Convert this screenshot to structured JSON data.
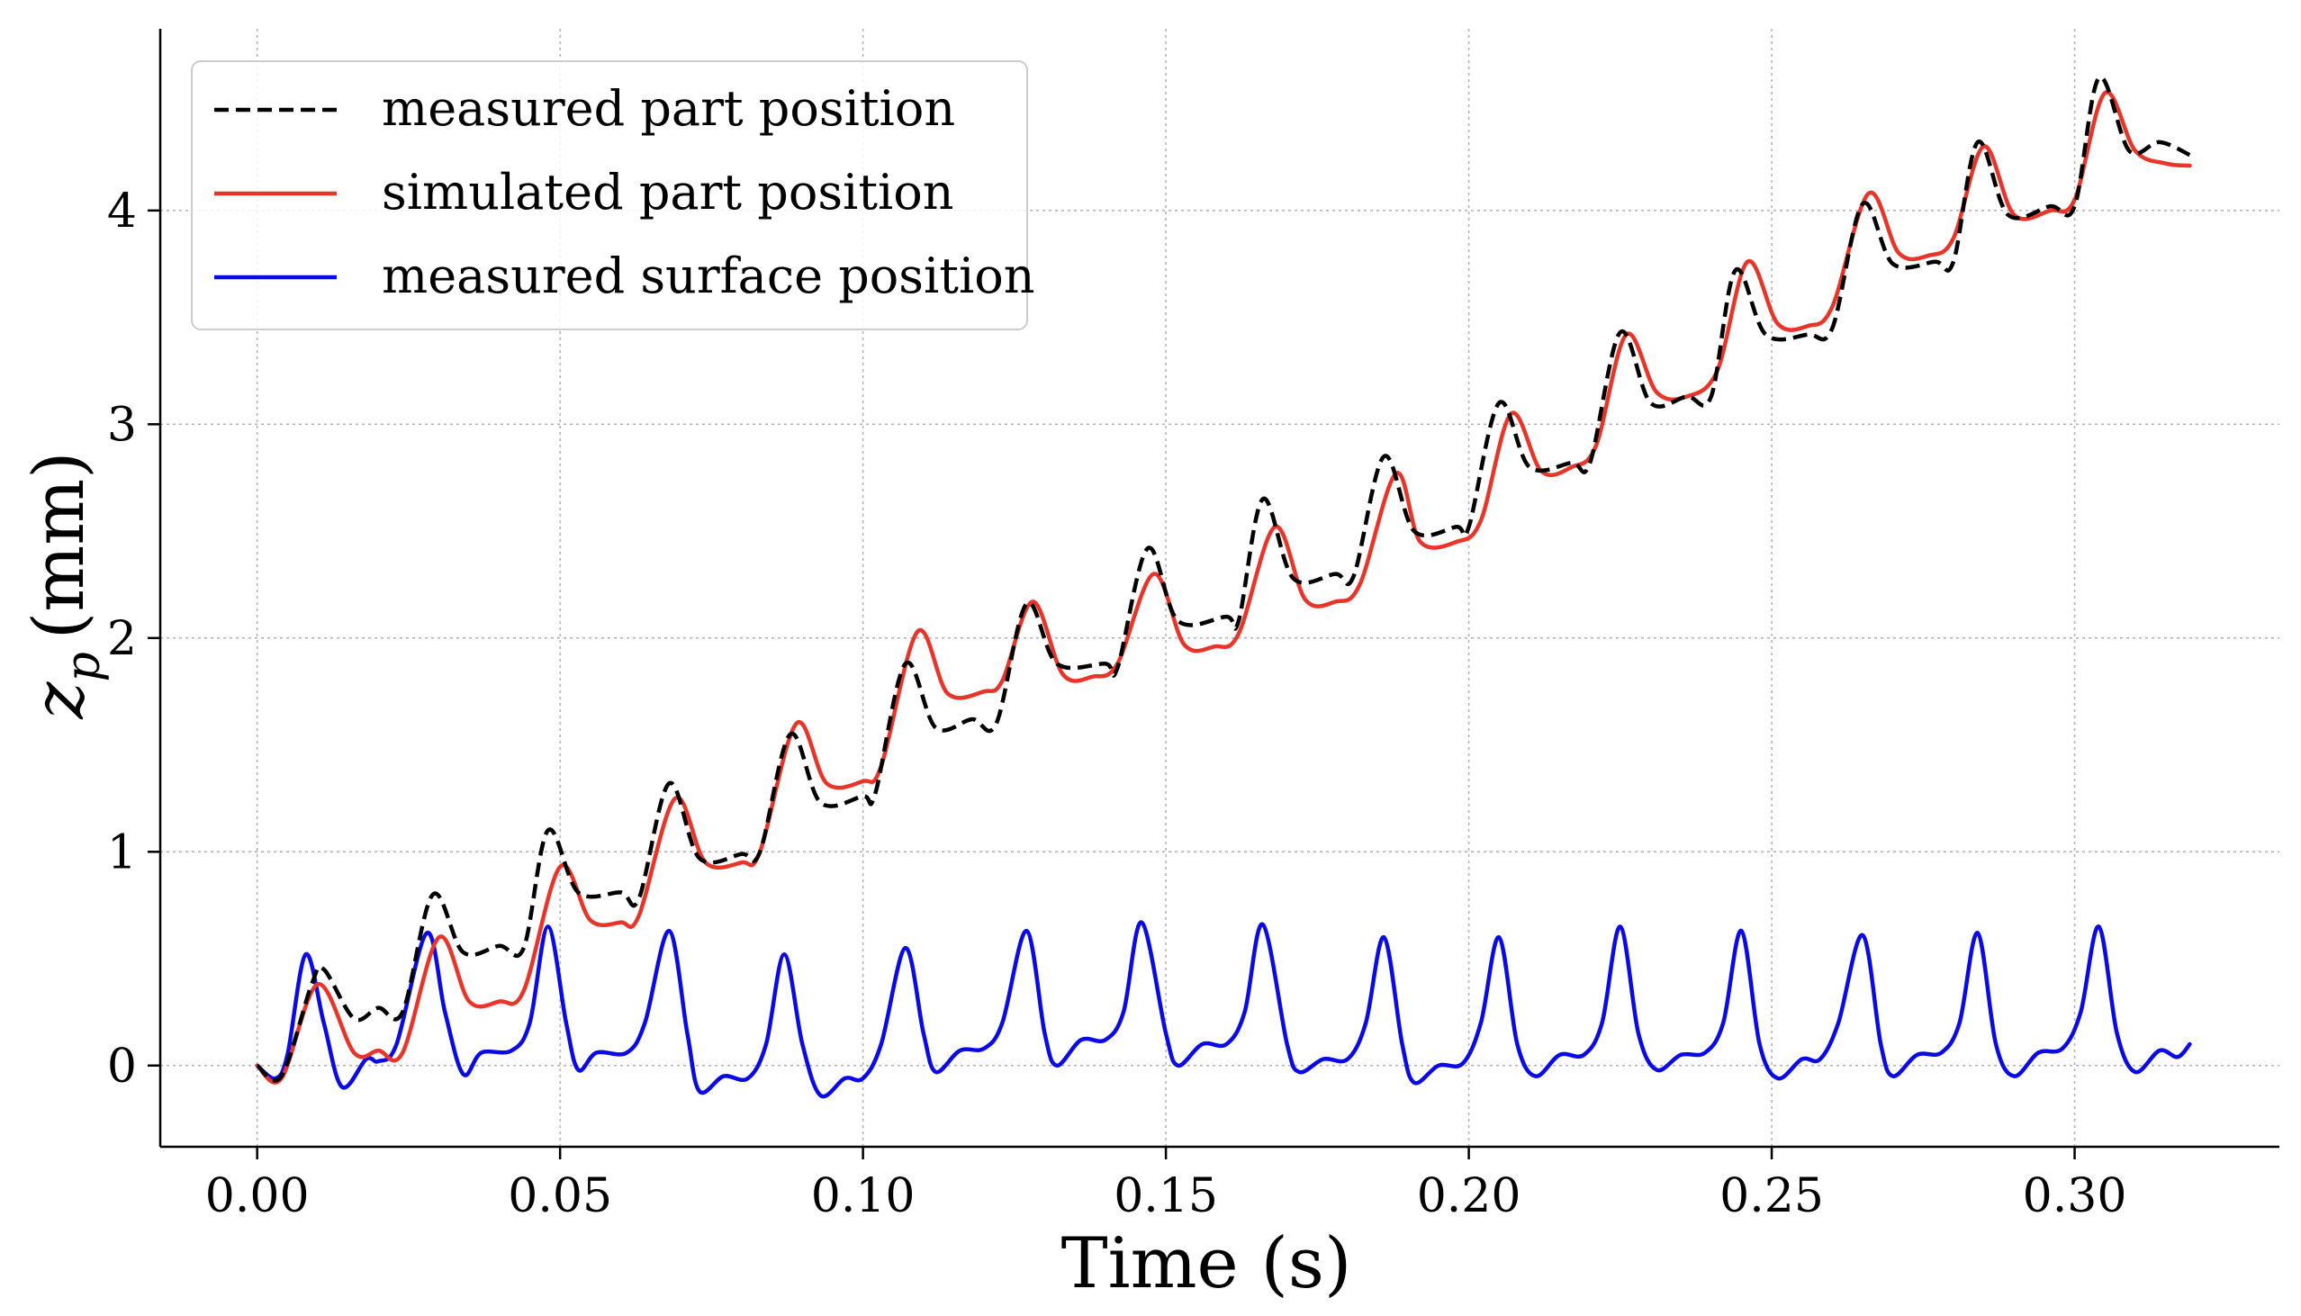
{
  "chart_data": {
    "type": "line",
    "xlabel": "Time (s)",
    "ylabel": {
      "symbol": "z",
      "subscript": "p",
      "unit": "(mm)"
    },
    "xlim": [
      -0.016,
      0.3338
    ],
    "ylim": [
      -0.38,
      4.85
    ],
    "xticks": [
      0.0,
      0.05,
      0.1,
      0.15,
      0.2,
      0.25,
      0.3
    ],
    "xtick_labels": [
      "0.00",
      "0.05",
      "0.10",
      "0.15",
      "0.20",
      "0.25",
      "0.30"
    ],
    "yticks": [
      0,
      1,
      2,
      3,
      4
    ],
    "ytick_labels": [
      "0",
      "1",
      "2",
      "3",
      "4"
    ],
    "grid": true,
    "legend_position": "top-left",
    "series": [
      {
        "name": "measured part position",
        "color": "#000000",
        "style": "dashed",
        "points": [
          [
            0.0,
            0.0
          ],
          [
            0.004,
            -0.05
          ],
          [
            0.009,
            0.38
          ],
          [
            0.011,
            0.45
          ],
          [
            0.016,
            0.22
          ],
          [
            0.02,
            0.27
          ],
          [
            0.024,
            0.25
          ],
          [
            0.029,
            0.8
          ],
          [
            0.034,
            0.53
          ],
          [
            0.04,
            0.56
          ],
          [
            0.044,
            0.55
          ],
          [
            0.048,
            1.1
          ],
          [
            0.053,
            0.81
          ],
          [
            0.06,
            0.81
          ],
          [
            0.063,
            0.78
          ],
          [
            0.068,
            1.32
          ],
          [
            0.073,
            0.97
          ],
          [
            0.08,
            0.99
          ],
          [
            0.083,
            1.0
          ],
          [
            0.088,
            1.55
          ],
          [
            0.093,
            1.23
          ],
          [
            0.1,
            1.26
          ],
          [
            0.102,
            1.27
          ],
          [
            0.107,
            1.88
          ],
          [
            0.112,
            1.58
          ],
          [
            0.118,
            1.62
          ],
          [
            0.122,
            1.6
          ],
          [
            0.127,
            2.16
          ],
          [
            0.132,
            1.88
          ],
          [
            0.14,
            1.88
          ],
          [
            0.142,
            1.86
          ],
          [
            0.147,
            2.42
          ],
          [
            0.152,
            2.08
          ],
          [
            0.16,
            2.1
          ],
          [
            0.162,
            2.08
          ],
          [
            0.166,
            2.65
          ],
          [
            0.171,
            2.28
          ],
          [
            0.178,
            2.3
          ],
          [
            0.181,
            2.29
          ],
          [
            0.186,
            2.85
          ],
          [
            0.191,
            2.5
          ],
          [
            0.198,
            2.52
          ],
          [
            0.2,
            2.52
          ],
          [
            0.205,
            3.1
          ],
          [
            0.21,
            2.8
          ],
          [
            0.217,
            2.82
          ],
          [
            0.22,
            2.82
          ],
          [
            0.225,
            3.43
          ],
          [
            0.23,
            3.1
          ],
          [
            0.236,
            3.13
          ],
          [
            0.24,
            3.13
          ],
          [
            0.244,
            3.72
          ],
          [
            0.249,
            3.42
          ],
          [
            0.256,
            3.42
          ],
          [
            0.26,
            3.45
          ],
          [
            0.265,
            4.03
          ],
          [
            0.27,
            3.75
          ],
          [
            0.277,
            3.76
          ],
          [
            0.28,
            3.76
          ],
          [
            0.284,
            4.32
          ],
          [
            0.289,
            3.98
          ],
          [
            0.296,
            4.02
          ],
          [
            0.3,
            4.02
          ],
          [
            0.304,
            4.62
          ],
          [
            0.309,
            4.28
          ],
          [
            0.314,
            4.32
          ],
          [
            0.319,
            4.26
          ]
        ]
      },
      {
        "name": "simulated part position",
        "color": "#e8352a",
        "style": "solid",
        "points": [
          [
            0.0,
            0.0
          ],
          [
            0.004,
            -0.06
          ],
          [
            0.01,
            0.38
          ],
          [
            0.016,
            0.06
          ],
          [
            0.02,
            0.07
          ],
          [
            0.024,
            0.06
          ],
          [
            0.03,
            0.6
          ],
          [
            0.035,
            0.3
          ],
          [
            0.04,
            0.3
          ],
          [
            0.044,
            0.35
          ],
          [
            0.05,
            0.93
          ],
          [
            0.055,
            0.68
          ],
          [
            0.06,
            0.67
          ],
          [
            0.063,
            0.7
          ],
          [
            0.069,
            1.25
          ],
          [
            0.074,
            0.95
          ],
          [
            0.08,
            0.95
          ],
          [
            0.083,
            1.0
          ],
          [
            0.089,
            1.6
          ],
          [
            0.094,
            1.32
          ],
          [
            0.1,
            1.33
          ],
          [
            0.103,
            1.4
          ],
          [
            0.109,
            2.03
          ],
          [
            0.114,
            1.74
          ],
          [
            0.12,
            1.75
          ],
          [
            0.123,
            1.8
          ],
          [
            0.128,
            2.17
          ],
          [
            0.133,
            1.83
          ],
          [
            0.138,
            1.82
          ],
          [
            0.142,
            1.88
          ],
          [
            0.148,
            2.3
          ],
          [
            0.153,
            1.97
          ],
          [
            0.158,
            1.96
          ],
          [
            0.162,
            2.02
          ],
          [
            0.168,
            2.52
          ],
          [
            0.173,
            2.18
          ],
          [
            0.178,
            2.17
          ],
          [
            0.182,
            2.25
          ],
          [
            0.188,
            2.77
          ],
          [
            0.192,
            2.45
          ],
          [
            0.198,
            2.45
          ],
          [
            0.202,
            2.55
          ],
          [
            0.207,
            3.05
          ],
          [
            0.212,
            2.78
          ],
          [
            0.217,
            2.8
          ],
          [
            0.221,
            2.9
          ],
          [
            0.226,
            3.42
          ],
          [
            0.231,
            3.15
          ],
          [
            0.236,
            3.13
          ],
          [
            0.241,
            3.25
          ],
          [
            0.246,
            3.76
          ],
          [
            0.251,
            3.47
          ],
          [
            0.256,
            3.46
          ],
          [
            0.26,
            3.55
          ],
          [
            0.266,
            4.08
          ],
          [
            0.271,
            3.8
          ],
          [
            0.276,
            3.79
          ],
          [
            0.28,
            3.87
          ],
          [
            0.285,
            4.3
          ],
          [
            0.29,
            3.98
          ],
          [
            0.296,
            4.0
          ],
          [
            0.3,
            4.05
          ],
          [
            0.305,
            4.55
          ],
          [
            0.31,
            4.28
          ],
          [
            0.315,
            4.22
          ],
          [
            0.319,
            4.21
          ]
        ]
      },
      {
        "name": "measured surface position",
        "color": "#0a0ae8",
        "style": "solid",
        "points": [
          [
            0.0,
            0.0
          ],
          [
            0.003,
            -0.06
          ],
          [
            0.005,
            0.05
          ],
          [
            0.008,
            0.52
          ],
          [
            0.011,
            0.2
          ],
          [
            0.014,
            -0.1
          ],
          [
            0.018,
            0.03
          ],
          [
            0.02,
            0.02
          ],
          [
            0.023,
            0.1
          ],
          [
            0.028,
            0.62
          ],
          [
            0.031,
            0.25
          ],
          [
            0.034,
            -0.04
          ],
          [
            0.037,
            0.06
          ],
          [
            0.042,
            0.07
          ],
          [
            0.045,
            0.2
          ],
          [
            0.048,
            0.65
          ],
          [
            0.051,
            0.2
          ],
          [
            0.053,
            -0.02
          ],
          [
            0.056,
            0.06
          ],
          [
            0.061,
            0.06
          ],
          [
            0.064,
            0.2
          ],
          [
            0.068,
            0.63
          ],
          [
            0.071,
            0.15
          ],
          [
            0.073,
            -0.12
          ],
          [
            0.077,
            -0.05
          ],
          [
            0.081,
            -0.06
          ],
          [
            0.084,
            0.1
          ],
          [
            0.087,
            0.52
          ],
          [
            0.09,
            0.1
          ],
          [
            0.093,
            -0.14
          ],
          [
            0.097,
            -0.06
          ],
          [
            0.1,
            -0.06
          ],
          [
            0.103,
            0.1
          ],
          [
            0.107,
            0.55
          ],
          [
            0.11,
            0.15
          ],
          [
            0.112,
            -0.03
          ],
          [
            0.116,
            0.07
          ],
          [
            0.12,
            0.08
          ],
          [
            0.123,
            0.2
          ],
          [
            0.127,
            0.63
          ],
          [
            0.13,
            0.15
          ],
          [
            0.132,
            0.0
          ],
          [
            0.136,
            0.12
          ],
          [
            0.14,
            0.12
          ],
          [
            0.143,
            0.25
          ],
          [
            0.146,
            0.67
          ],
          [
            0.15,
            0.15
          ],
          [
            0.152,
            0.0
          ],
          [
            0.156,
            0.1
          ],
          [
            0.16,
            0.1
          ],
          [
            0.163,
            0.25
          ],
          [
            0.166,
            0.66
          ],
          [
            0.17,
            0.1
          ],
          [
            0.172,
            -0.03
          ],
          [
            0.176,
            0.03
          ],
          [
            0.18,
            0.03
          ],
          [
            0.183,
            0.2
          ],
          [
            0.186,
            0.6
          ],
          [
            0.189,
            0.1
          ],
          [
            0.191,
            -0.08
          ],
          [
            0.195,
            0.0
          ],
          [
            0.199,
            0.01
          ],
          [
            0.202,
            0.2
          ],
          [
            0.205,
            0.6
          ],
          [
            0.208,
            0.1
          ],
          [
            0.211,
            -0.05
          ],
          [
            0.215,
            0.05
          ],
          [
            0.219,
            0.05
          ],
          [
            0.222,
            0.2
          ],
          [
            0.225,
            0.65
          ],
          [
            0.228,
            0.15
          ],
          [
            0.231,
            -0.02
          ],
          [
            0.235,
            0.05
          ],
          [
            0.239,
            0.06
          ],
          [
            0.242,
            0.2
          ],
          [
            0.245,
            0.63
          ],
          [
            0.248,
            0.1
          ],
          [
            0.251,
            -0.06
          ],
          [
            0.255,
            0.03
          ],
          [
            0.258,
            0.03
          ],
          [
            0.261,
            0.2
          ],
          [
            0.265,
            0.61
          ],
          [
            0.268,
            0.1
          ],
          [
            0.27,
            -0.05
          ],
          [
            0.274,
            0.05
          ],
          [
            0.278,
            0.06
          ],
          [
            0.281,
            0.2
          ],
          [
            0.284,
            0.62
          ],
          [
            0.287,
            0.1
          ],
          [
            0.29,
            -0.05
          ],
          [
            0.294,
            0.06
          ],
          [
            0.298,
            0.08
          ],
          [
            0.301,
            0.25
          ],
          [
            0.304,
            0.65
          ],
          [
            0.307,
            0.15
          ],
          [
            0.31,
            -0.03
          ],
          [
            0.314,
            0.07
          ],
          [
            0.317,
            0.04
          ],
          [
            0.319,
            0.1
          ]
        ]
      }
    ]
  }
}
